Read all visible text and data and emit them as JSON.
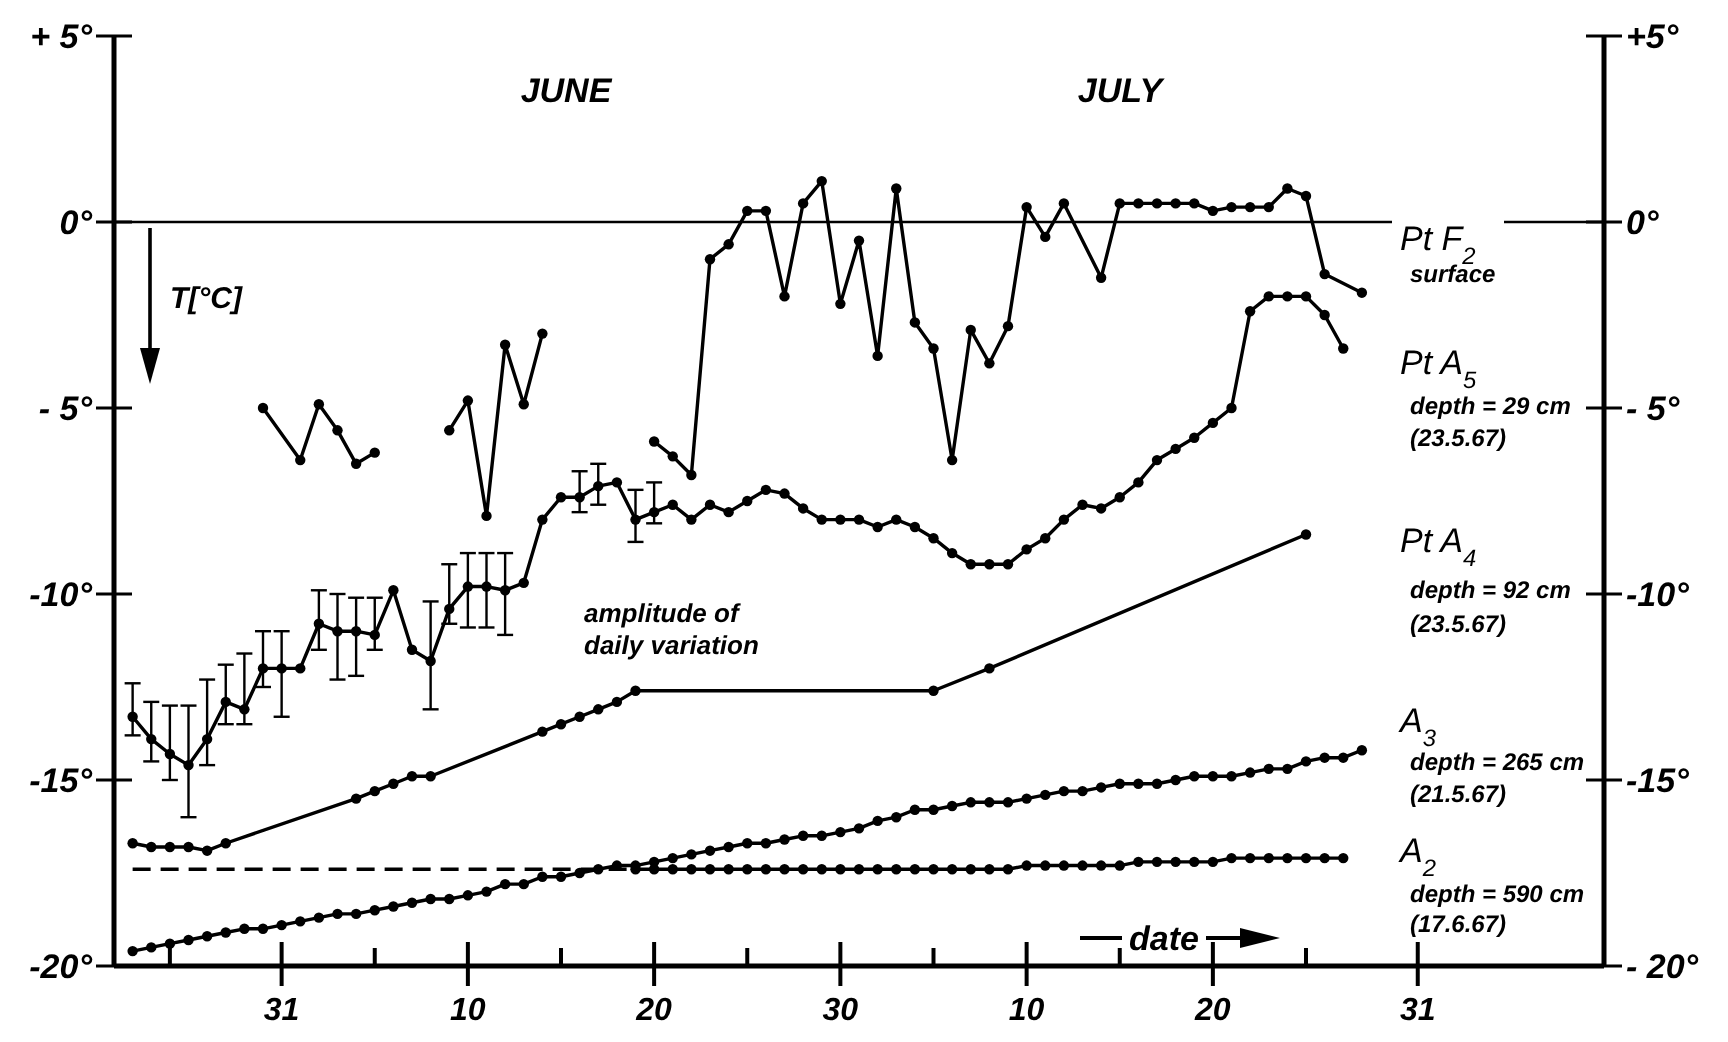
{
  "chart_data": {
    "type": "line",
    "ylabel": "T[°C]",
    "xlabel": "date",
    "marker": "circle",
    "line_style": "solid",
    "xlim": [
      "--05-22",
      "--08-10"
    ],
    "xticks": [
      {
        "value": "--05-25",
        "label": null
      },
      {
        "value": "--05-31",
        "label": "31"
      },
      {
        "value": "--06-05",
        "label": null
      },
      {
        "value": "--06-10",
        "label": "10"
      },
      {
        "value": "--06-15",
        "label": null
      },
      {
        "value": "--06-20",
        "label": "20"
      },
      {
        "value": "--06-25",
        "label": null
      },
      {
        "value": "--06-30",
        "label": "30"
      },
      {
        "value": "--07-05",
        "label": null
      },
      {
        "value": "--07-10",
        "label": "10"
      },
      {
        "value": "--07-15",
        "label": null
      },
      {
        "value": "--07-20",
        "label": "20"
      },
      {
        "value": "--07-25",
        "label": null
      },
      {
        "value": "--07-31",
        "label": "31"
      }
    ],
    "ylim": [
      -20,
      5
    ],
    "yticks": [
      {
        "value": 5,
        "label": "+ 5°"
      },
      {
        "value": 0,
        "label": "0°"
      },
      {
        "value": -5,
        "label": "- 5°"
      },
      {
        "value": -10,
        "label": "-10°"
      },
      {
        "value": -15,
        "label": "-15°"
      },
      {
        "value": -20,
        "label": "-20°"
      }
    ],
    "y2lim": [
      -20,
      5
    ],
    "y2ticks": [
      {
        "value": 5,
        "label": "+5°"
      },
      {
        "value": 0,
        "label": "0°"
      },
      {
        "value": -5,
        "label": "- 5°"
      },
      {
        "value": -10,
        "label": "-10°"
      },
      {
        "value": -15,
        "label": "-15°"
      },
      {
        "value": -20,
        "label": "- 20°"
      }
    ],
    "ref_lines": [
      {
        "axis": "y",
        "value": 0,
        "color": "#000000"
      }
    ],
    "annotations": [
      "JUNE",
      "JULY",
      "amplitude of",
      "daily variation",
      "surface",
      "depth = 29 cm",
      "(23.5.67)",
      "depth = 92 cm",
      "(23.5.67)",
      "depth = 265 cm",
      "(21.5.67)",
      "depth = 590 cm",
      "(17.6.67)"
    ],
    "x": [
      "--05-23",
      "--05-24",
      "--05-25",
      "--05-26",
      "--05-27",
      "--05-28",
      "--05-29",
      "--05-30",
      "--05-31",
      "--06-01",
      "--06-02",
      "--06-03",
      "--06-04",
      "--06-05",
      "--06-06",
      "--06-07",
      "--06-08",
      "--06-09",
      "--06-10",
      "--06-11",
      "--06-12",
      "--06-13",
      "--06-14",
      "--06-15",
      "--06-16",
      "--06-17",
      "--06-18",
      "--06-19",
      "--06-20",
      "--06-21",
      "--06-22",
      "--06-23",
      "--06-24",
      "--06-25",
      "--06-26",
      "--06-27",
      "--06-28",
      "--06-29",
      "--06-30",
      "--07-01",
      "--07-02",
      "--07-03",
      "--07-04",
      "--07-05",
      "--07-06",
      "--07-07",
      "--07-08",
      "--07-09",
      "--07-10",
      "--07-11",
      "--07-12",
      "--07-13",
      "--07-14",
      "--07-15",
      "--07-16",
      "--07-17",
      "--07-18",
      "--07-19",
      "--07-20",
      "--07-21",
      "--07-22",
      "--07-23",
      "--07-24",
      "--07-25",
      "--07-26",
      "--07-27",
      "--07-28"
    ],
    "series": [
      {
        "name": "Pt F$_{2}$",
        "color": "#000000",
        "x": [
          "--05-30",
          "--06-01",
          "--06-02",
          "--06-03",
          "--06-04",
          "--06-05",
          "--06-06",
          "--06-09",
          "--06-10",
          "--06-11",
          "--06-12",
          "--06-13",
          "--06-14",
          "--06-15",
          "--06-20",
          "--06-21",
          "--06-22",
          "--06-23",
          "--06-24",
          "--06-25",
          "--06-26",
          "--06-27",
          "--06-28",
          "--06-29",
          "--06-30",
          "--07-01",
          "--07-02",
          "--07-03",
          "--07-04",
          "--07-05",
          "--07-06",
          "--07-07",
          "--07-08",
          "--07-09",
          "--07-10",
          "--07-11",
          "--07-12",
          "--07-14",
          "--07-15",
          "--07-16",
          "--07-17",
          "--07-18",
          "--07-19",
          "--07-20",
          "--07-21",
          "--07-22",
          "--07-23",
          "--07-24",
          "--07-25",
          "--07-26",
          "--07-28"
        ],
        "values": [
          -5.0,
          -6.4,
          -4.9,
          -5.6,
          -6.5,
          -6.2,
          null,
          -5.6,
          -4.8,
          -7.9,
          -3.3,
          -4.9,
          -3.0,
          null,
          -5.9,
          -6.3,
          -6.8,
          -1.0,
          -0.6,
          0.3,
          0.3,
          -2.0,
          0.5,
          1.1,
          -2.2,
          -0.5,
          -3.6,
          0.9,
          -2.7,
          -3.4,
          -6.4,
          -2.9,
          -3.8,
          -2.8,
          0.4,
          -0.4,
          0.5,
          -1.5,
          0.5,
          0.5,
          0.5,
          0.5,
          0.5,
          0.3,
          0.4,
          0.4,
          0.4,
          0.9,
          0.7,
          -1.4,
          -1.9
        ]
      },
      {
        "name": "Pt A$_{5}$",
        "color": "#000000",
        "values": [
          -13.3,
          -13.9,
          -14.3,
          -14.6,
          -13.9,
          -12.9,
          -13.1,
          -12.0,
          -12.0,
          -12.0,
          -10.8,
          -11.0,
          -11.0,
          -11.1,
          -9.9,
          -11.5,
          -11.8,
          -10.4,
          -9.8,
          -9.8,
          -9.9,
          -9.7,
          -8.0,
          -7.4,
          -7.4,
          -7.1,
          -7.0,
          -8.0,
          -7.8,
          -7.6,
          -8.0,
          -7.6,
          -7.8,
          -7.5,
          -7.2,
          -7.3,
          -7.7,
          -8.0,
          -8.0,
          -8.0,
          -8.2,
          -8.0,
          -8.2,
          -8.5,
          -8.9,
          -9.2,
          -9.2,
          -9.2,
          -8.8,
          -8.5,
          -8.0,
          -7.6,
          -7.7,
          -7.4,
          -7.0,
          -6.4,
          -6.1,
          -5.8,
          -5.4,
          -5.0,
          -2.4,
          -2.0,
          -2.0,
          -2.0,
          -2.5,
          -3.4,
          null
        ],
        "errors": [
          [
            -13.8,
            -12.4
          ],
          [
            -14.5,
            -12.9
          ],
          [
            -15.0,
            -13.0
          ],
          [
            -16.0,
            -13.0
          ],
          [
            -14.6,
            -12.3
          ],
          [
            -13.5,
            -11.9
          ],
          [
            -13.5,
            -11.6
          ],
          [
            -12.5,
            -11.0
          ],
          [
            -13.3,
            -11.0
          ],
          null,
          [
            -11.5,
            -9.9
          ],
          [
            -12.3,
            -10.0
          ],
          [
            -12.2,
            -10.1
          ],
          [
            -11.5,
            -10.1
          ],
          null,
          null,
          [
            -13.1,
            -10.2
          ],
          [
            -10.8,
            -9.2
          ],
          [
            -10.9,
            -8.9
          ],
          [
            -10.9,
            -8.9
          ],
          [
            -11.1,
            -8.9
          ],
          null,
          null,
          null,
          [
            -7.8,
            -6.7
          ],
          [
            -7.6,
            -6.5
          ],
          null,
          [
            -8.6,
            -7.2
          ],
          [
            -8.1,
            -7.0
          ],
          null,
          null,
          null,
          null,
          null,
          null,
          null,
          null,
          null,
          null,
          null,
          null,
          null,
          null,
          null,
          null,
          null,
          null,
          null,
          null,
          null,
          null,
          null,
          null,
          null,
          null,
          null,
          null,
          null,
          null,
          null,
          null,
          null,
          null,
          null,
          null,
          null,
          null
        ]
      },
      {
        "name": "Pt A$_{4}$",
        "color": "#000000",
        "x": [
          "--05-23",
          "--05-24",
          "--05-25",
          "--05-26",
          "--05-27",
          "--05-28",
          "--06-04",
          "--06-05",
          "--06-06",
          "--06-07",
          "--06-08",
          "--06-14",
          "--06-15",
          "--06-16",
          "--06-17",
          "--06-18",
          "--06-19",
          "--07-05",
          "--07-08",
          "--07-25"
        ],
        "values": [
          -16.7,
          -16.8,
          -16.8,
          -16.8,
          -16.9,
          -16.7,
          -15.5,
          -15.3,
          -15.1,
          -14.9,
          -14.9,
          -13.7,
          -13.5,
          -13.3,
          -13.1,
          -12.9,
          -12.6,
          -12.6,
          -12.0,
          -8.4
        ]
      },
      {
        "name": "A$_{3}$",
        "color": "#000000",
        "values": [
          -19.6,
          -19.5,
          -19.4,
          -19.3,
          -19.2,
          -19.1,
          -19.0,
          -19.0,
          -18.9,
          -18.8,
          -18.7,
          -18.6,
          -18.6,
          -18.5,
          -18.4,
          -18.3,
          -18.2,
          -18.2,
          -18.1,
          -18.0,
          -17.8,
          -17.8,
          -17.6,
          -17.6,
          -17.5,
          -17.4,
          -17.3,
          -17.3,
          -17.2,
          -17.1,
          -17.0,
          -16.9,
          -16.8,
          -16.7,
          -16.7,
          -16.6,
          -16.5,
          -16.5,
          -16.4,
          -16.3,
          -16.1,
          -16.0,
          -15.8,
          -15.8,
          -15.7,
          -15.6,
          -15.6,
          -15.6,
          -15.5,
          -15.4,
          -15.3,
          -15.3,
          -15.2,
          -15.1,
          -15.1,
          -15.1,
          -15.0,
          -14.9,
          -14.9,
          -14.9,
          -14.8,
          -14.7,
          -14.7,
          -14.5,
          -14.4,
          -14.4,
          -14.2
        ]
      },
      {
        "name": "A$_{2}$",
        "color": "#000000",
        "x": [
          "--06-19",
          "--06-20",
          "--06-21",
          "--06-22",
          "--06-23",
          "--06-24",
          "--06-25",
          "--06-26",
          "--06-27",
          "--06-28",
          "--06-29",
          "--06-30",
          "--07-01",
          "--07-02",
          "--07-03",
          "--07-04",
          "--07-05",
          "--07-06",
          "--07-07",
          "--07-08",
          "--07-09",
          "--07-10",
          "--07-11",
          "--07-12",
          "--07-13",
          "--07-14",
          "--07-15",
          "--07-16",
          "--07-17",
          "--07-18",
          "--07-19",
          "--07-20",
          "--07-21",
          "--07-22",
          "--07-23",
          "--07-24",
          "--07-25",
          "--07-26",
          "--07-27"
        ],
        "values": [
          -17.4,
          -17.4,
          -17.4,
          -17.4,
          -17.4,
          -17.4,
          -17.4,
          -17.4,
          -17.4,
          -17.4,
          -17.4,
          -17.4,
          -17.4,
          -17.4,
          -17.4,
          -17.4,
          -17.4,
          -17.4,
          -17.4,
          -17.4,
          -17.4,
          -17.3,
          -17.3,
          -17.3,
          -17.3,
          -17.3,
          -17.3,
          -17.2,
          -17.2,
          -17.2,
          -17.2,
          -17.2,
          -17.1,
          -17.1,
          -17.1,
          -17.1,
          -17.1,
          -17.1,
          -17.1
        ]
      },
      {
        "color": "#000000",
        "x": [
          "--05-23",
          "--06-19"
        ],
        "values": [
          -17.4,
          -17.4
        ],
        "line_style": "dashed",
        "marker": "none"
      }
    ]
  }
}
